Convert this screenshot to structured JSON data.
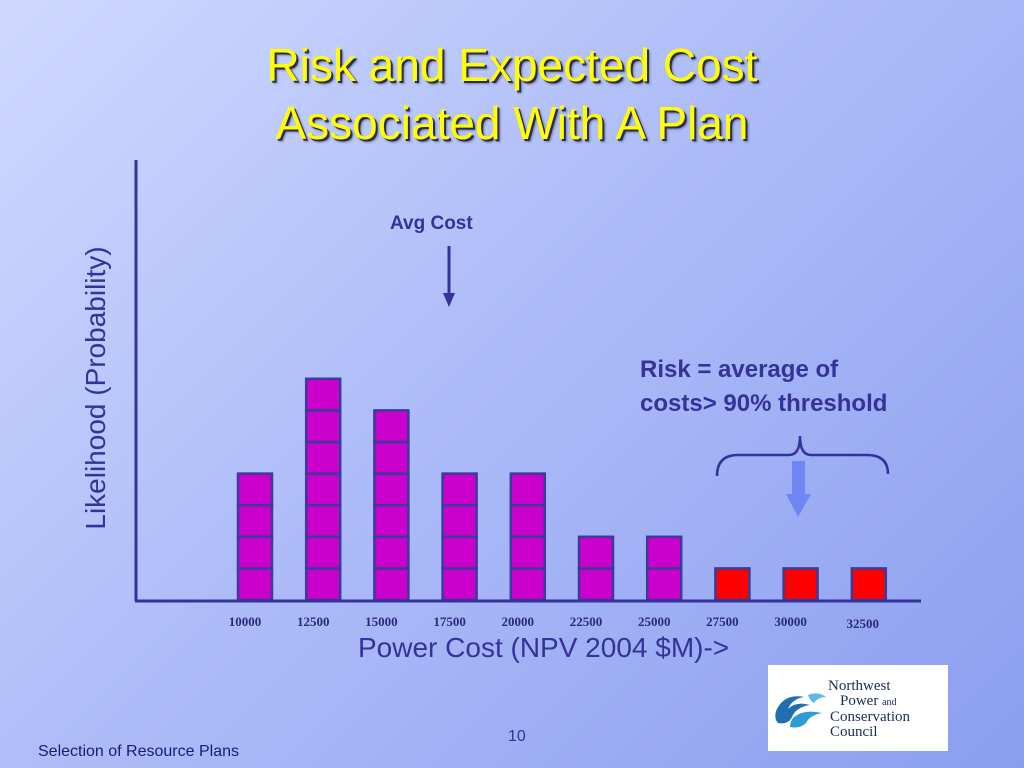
{
  "slide": {
    "title_line1": "Risk and Expected Cost",
    "title_line2": "Associated With A Plan",
    "footer": "Selection of Resource Plans",
    "page_number": "10"
  },
  "logo": {
    "line1": "Northwest",
    "line2_main": "Power",
    "line2_small": "and",
    "line3": "Conservation",
    "line4": "Council"
  },
  "chart_data": {
    "type": "bar",
    "categories": [
      "10000",
      "12500",
      "15000",
      "17500",
      "20000",
      "22500",
      "25000",
      "27500",
      "30000",
      "32500"
    ],
    "values": [
      4,
      7,
      6,
      4,
      4,
      2,
      2,
      1,
      1,
      1
    ],
    "unit_stacks": true,
    "xlabel": "Power Cost (NPV 2004 $M)->",
    "ylabel": "Likelihood (Probability)",
    "ylim": [
      0,
      8
    ],
    "grid": false,
    "annotations": [
      {
        "text": "Avg Cost",
        "type": "arrow",
        "points_to": "between 15000 and 17500"
      },
      {
        "text_line1": "Risk = average of",
        "text_line2": "costs> 90% threshold",
        "type": "brace",
        "spans": [
          "27500",
          "32500"
        ]
      }
    ],
    "colors": {
      "bar": "#cc00cc",
      "risk_bar": "#ff0000",
      "bar_outline": "#3b3b9a",
      "axis": "#33339a",
      "risk_arrow": "#6f86f5"
    },
    "risk_categories": [
      "27500",
      "30000",
      "32500"
    ]
  }
}
